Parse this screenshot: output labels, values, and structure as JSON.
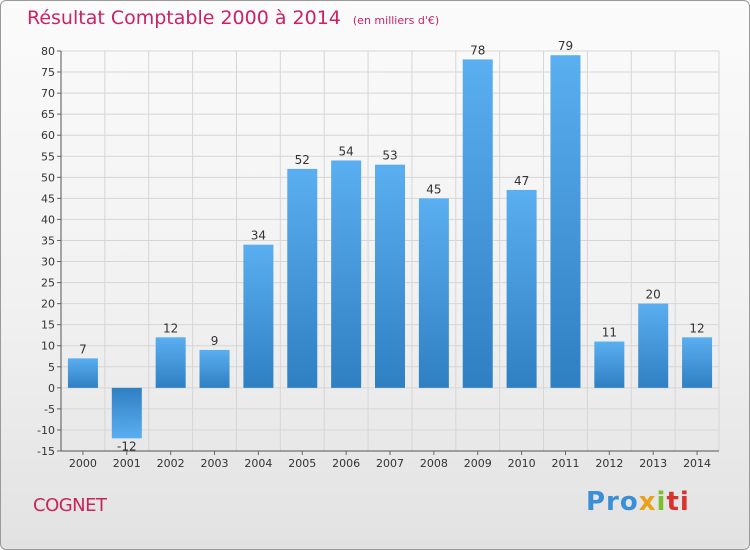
{
  "title": "Résultat Comptable 2000 à 2014",
  "unit_note": "(en milliers d'€)",
  "commune": "COGNET",
  "brand": {
    "parts": [
      "Pro",
      "x",
      "i",
      "ti"
    ]
  },
  "colors": {
    "bar": "#4a9ee0",
    "title": "#cc2166",
    "grid": "#d6d6d6"
  },
  "chart_data": {
    "type": "bar",
    "title": "Résultat Comptable 2000 à 2014",
    "xlabel": "",
    "ylabel": "(en milliers d'€)",
    "categories": [
      "2000",
      "2001",
      "2002",
      "2003",
      "2004",
      "2005",
      "2006",
      "2007",
      "2008",
      "2009",
      "2010",
      "2011",
      "2012",
      "2013",
      "2014"
    ],
    "values": [
      7,
      -12,
      12,
      9,
      34,
      52,
      54,
      53,
      45,
      78,
      47,
      79,
      11,
      20,
      12
    ],
    "labels": [
      "7",
      "-12",
      "12",
      "9",
      "34",
      "52",
      "54",
      "53",
      "45",
      "78",
      "47",
      "79",
      "11",
      "20",
      "12"
    ],
    "ylim": [
      -15,
      80
    ],
    "yticks": [
      -15,
      -10,
      -5,
      0,
      5,
      10,
      15,
      20,
      25,
      30,
      35,
      40,
      45,
      50,
      55,
      60,
      65,
      70,
      75,
      80
    ],
    "grid": true
  }
}
